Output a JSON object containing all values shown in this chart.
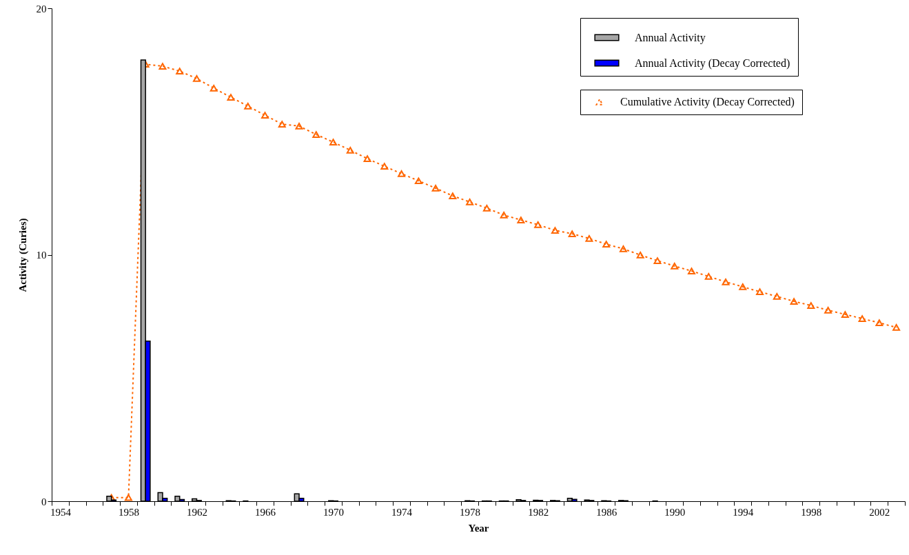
{
  "chart_data": {
    "type": "bar",
    "xlabel": "Year",
    "ylabel": "Activity (Curies)",
    "categories": [
      "1954",
      null,
      null,
      null,
      "1958",
      null,
      null,
      null,
      "1962",
      null,
      null,
      null,
      "1966",
      null,
      null,
      null,
      "1970",
      null,
      null,
      null,
      "1974",
      null,
      null,
      null,
      "1978",
      null,
      null,
      null,
      "1982",
      null,
      null,
      null,
      "1986",
      null,
      null,
      null,
      "1990",
      null,
      null,
      null,
      "1994",
      null,
      null,
      null,
      "1998",
      null,
      null,
      null,
      "2002",
      null
    ],
    "series": [
      {
        "name": "Annual Activity",
        "color": "#a6a6a6",
        "values": [
          null,
          null,
          null,
          0.2,
          null,
          17.9,
          0.35,
          0.2,
          0.1,
          null,
          0.02,
          0.01,
          null,
          null,
          0.3,
          null,
          0.02,
          null,
          null,
          null,
          null,
          null,
          null,
          null,
          0.02,
          0.01,
          0.01,
          0.06,
          0.04,
          0.03,
          0.12,
          0.05,
          0.02,
          0.03,
          null,
          0.01,
          null,
          null,
          null,
          null,
          null,
          null,
          null,
          null,
          null,
          null,
          null,
          null,
          null,
          null
        ]
      },
      {
        "name": "Annual Activity (Decay Corrected)",
        "color": "#0000ff",
        "values": [
          null,
          null,
          null,
          0.05,
          null,
          6.5,
          0.12,
          0.07,
          0.03,
          null,
          0.01,
          null,
          null,
          null,
          0.12,
          null,
          0.01,
          null,
          null,
          null,
          null,
          null,
          null,
          null,
          0.01,
          0.01,
          0.01,
          0.03,
          0.03,
          0.02,
          0.08,
          0.03,
          0.01,
          0.02,
          null,
          null,
          null,
          null,
          null,
          null,
          null,
          null,
          null,
          null,
          null,
          null,
          null,
          null,
          null,
          null
        ]
      },
      {
        "name": "Cumulative Activity (Decay Corrected)",
        "type": "line",
        "color": "#ff6600",
        "values": [
          null,
          null,
          null,
          0.15,
          0.15,
          17.73,
          17.65,
          17.45,
          17.15,
          16.76,
          16.39,
          16.03,
          15.66,
          15.3,
          15.22,
          14.88,
          14.57,
          14.24,
          13.9,
          13.59,
          13.29,
          13.0,
          12.7,
          12.39,
          12.14,
          11.89,
          11.61,
          11.41,
          11.22,
          10.99,
          10.85,
          10.66,
          10.43,
          10.24,
          9.99,
          9.76,
          9.54,
          9.34,
          9.12,
          8.9,
          8.7,
          8.5,
          8.31,
          8.11,
          7.94,
          7.75,
          7.58,
          7.41,
          7.24,
          7.05
        ]
      }
    ],
    "ylim": [
      0,
      20
    ],
    "yticks": [
      0,
      10,
      20
    ],
    "legend": "top right",
    "marker": "triangle",
    "line_style": "dashed"
  }
}
